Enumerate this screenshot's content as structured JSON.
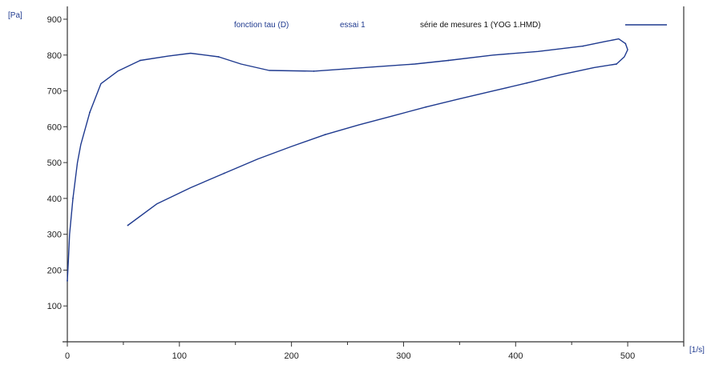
{
  "chart_data": {
    "type": "line",
    "title_function": "fonction tau (D)",
    "title_run": "essai 1",
    "ylabel": "[Pa]",
    "xlabel": "[1/s]",
    "xlim": [
      0,
      550
    ],
    "ylim": [
      0,
      900
    ],
    "x_ticks": [
      0,
      100,
      200,
      300,
      400,
      500
    ],
    "y_ticks": [
      100,
      200,
      300,
      400,
      500,
      600,
      700,
      800,
      900
    ],
    "grid": false,
    "legend_position": "top-right",
    "series": [
      {
        "name": "série de mesures 1 (YOG  1.HMD)",
        "color": "#1f3a8f",
        "points": [
          [
            0,
            170
          ],
          [
            1,
            230
          ],
          [
            2,
            300
          ],
          [
            5,
            400
          ],
          [
            9,
            500
          ],
          [
            12,
            550
          ],
          [
            20,
            640
          ],
          [
            30,
            720
          ],
          [
            45,
            755
          ],
          [
            65,
            785
          ],
          [
            90,
            797
          ],
          [
            110,
            805
          ],
          [
            135,
            795
          ],
          [
            155,
            775
          ],
          [
            180,
            757
          ],
          [
            220,
            755
          ],
          [
            265,
            765
          ],
          [
            310,
            775
          ],
          [
            340,
            785
          ],
          [
            380,
            800
          ],
          [
            420,
            810
          ],
          [
            460,
            825
          ],
          [
            480,
            838
          ],
          [
            492,
            845
          ],
          [
            498,
            832
          ],
          [
            500,
            815
          ],
          [
            497,
            795
          ],
          [
            490,
            775
          ],
          [
            470,
            765
          ],
          [
            440,
            745
          ],
          [
            410,
            722
          ],
          [
            380,
            700
          ],
          [
            350,
            678
          ],
          [
            320,
            655
          ],
          [
            290,
            630
          ],
          [
            260,
            605
          ],
          [
            230,
            578
          ],
          [
            200,
            545
          ],
          [
            170,
            510
          ],
          [
            140,
            470
          ],
          [
            110,
            430
          ],
          [
            80,
            385
          ],
          [
            54,
            325
          ]
        ]
      }
    ]
  }
}
